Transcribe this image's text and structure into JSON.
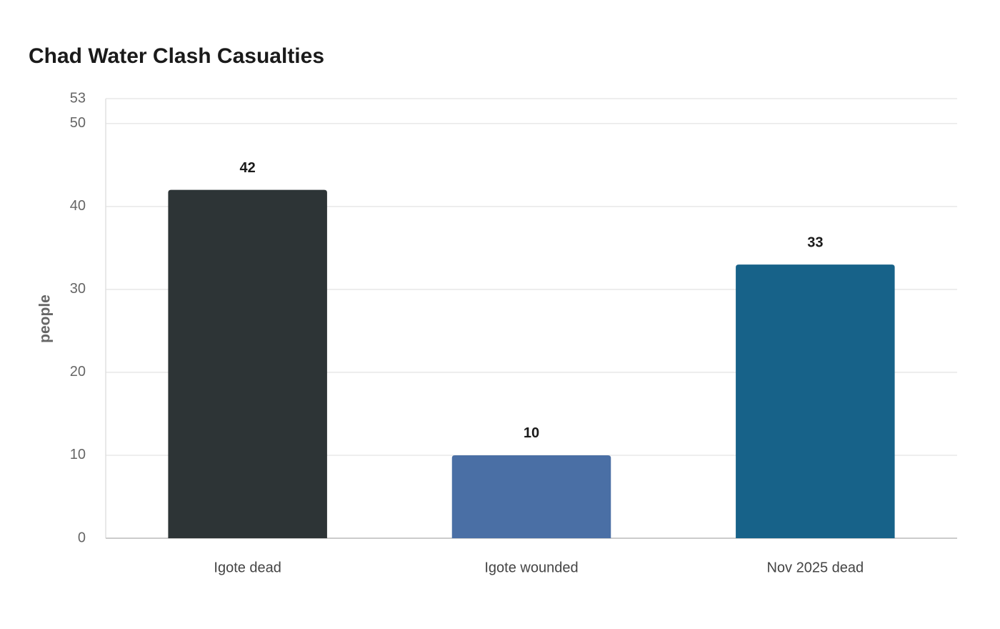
{
  "chart_data": {
    "type": "bar",
    "title": "Chad Water Clash Casualties",
    "y_label": "people",
    "categories": [
      "Igote dead",
      "Igote wounded",
      "Nov 2025 dead"
    ],
    "values": [
      42,
      10,
      33
    ],
    "colors": [
      "#2d3436",
      "#4a6fa5",
      "#176289"
    ],
    "ylim": [
      0,
      53
    ],
    "yticks": [
      0,
      10,
      20,
      30,
      40,
      50,
      53
    ],
    "grid": true
  }
}
